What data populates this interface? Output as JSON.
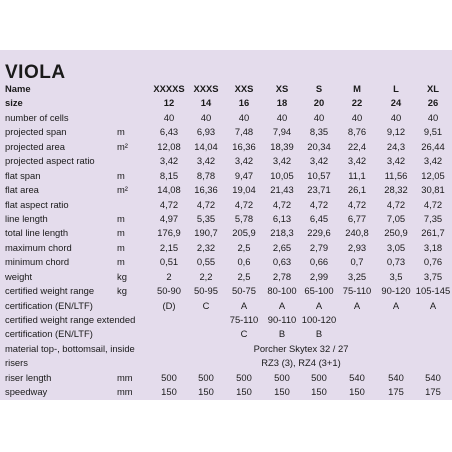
{
  "title": "VIOLA",
  "header": {
    "name_label": "Name",
    "size_label": "size",
    "names": [
      "XXXXS",
      "XXXS",
      "XXS",
      "XS",
      "S",
      "M",
      "L",
      "XL"
    ],
    "sizes": [
      "12",
      "14",
      "16",
      "18",
      "20",
      "22",
      "24",
      "26"
    ]
  },
  "rows": [
    {
      "label": "number of cells",
      "unit": "",
      "values": [
        "40",
        "40",
        "40",
        "40",
        "40",
        "40",
        "40",
        "40"
      ]
    },
    {
      "label": "projected span",
      "unit": "m",
      "values": [
        "6,43",
        "6,93",
        "7,48",
        "7,94",
        "8,35",
        "8,76",
        "9,12",
        "9,51"
      ]
    },
    {
      "label": "projected area",
      "unit": "m²",
      "values": [
        "12,08",
        "14,04",
        "16,36",
        "18,39",
        "20,34",
        "22,4",
        "24,3",
        "26,44"
      ]
    },
    {
      "label": "projected aspect ratio",
      "unit": "",
      "values": [
        "3,42",
        "3,42",
        "3,42",
        "3,42",
        "3,42",
        "3,42",
        "3,42",
        "3,42"
      ]
    },
    {
      "label": "flat span",
      "unit": "m",
      "values": [
        "8,15",
        "8,78",
        "9,47",
        "10,05",
        "10,57",
        "11,1",
        "11,56",
        "12,05"
      ]
    },
    {
      "label": "flat area",
      "unit": "m²",
      "values": [
        "14,08",
        "16,36",
        "19,04",
        "21,43",
        "23,71",
        "26,1",
        "28,32",
        "30,81"
      ]
    },
    {
      "label": "flat aspect ratio",
      "unit": "",
      "values": [
        "4,72",
        "4,72",
        "4,72",
        "4,72",
        "4,72",
        "4,72",
        "4,72",
        "4,72"
      ]
    },
    {
      "label": "line length",
      "unit": "m",
      "values": [
        "4,97",
        "5,35",
        "5,78",
        "6,13",
        "6,45",
        "6,77",
        "7,05",
        "7,35"
      ]
    },
    {
      "label": "total line length",
      "unit": "m",
      "values": [
        "176,9",
        "190,7",
        "205,9",
        "218,3",
        "229,6",
        "240,8",
        "250,9",
        "261,7"
      ]
    },
    {
      "label": "maximum chord",
      "unit": "m",
      "values": [
        "2,15",
        "2,32",
        "2,5",
        "2,65",
        "2,79",
        "2,93",
        "3,05",
        "3,18"
      ]
    },
    {
      "label": "minimum chord",
      "unit": "m",
      "values": [
        "0,51",
        "0,55",
        "0,6",
        "0,63",
        "0,66",
        "0,7",
        "0,73",
        "0,76"
      ]
    },
    {
      "label": "weight",
      "unit": "kg",
      "values": [
        "2",
        "2,2",
        "2,5",
        "2,78",
        "2,99",
        "3,25",
        "3,5",
        "3,75"
      ]
    },
    {
      "label": "certified weight range",
      "unit": "kg",
      "values": [
        "50-90",
        "50-95",
        "50-75",
        "80-100",
        "65-100",
        "75-110",
        "90-120",
        "105-145"
      ]
    },
    {
      "label": "certification (EN/LTF)",
      "unit": "",
      "values": [
        "(D)",
        "C",
        "A",
        "A",
        "A",
        "A",
        "A",
        "A"
      ]
    },
    {
      "label": "certified weight range extended",
      "unit": "",
      "values": [
        "",
        "",
        "75-110",
        "90-110",
        "100-120",
        "",
        "",
        ""
      ]
    },
    {
      "label": "certification (EN/LTF)",
      "unit": "",
      "values": [
        "",
        "",
        "C",
        "B",
        "B",
        "",
        "",
        ""
      ]
    },
    {
      "label": "material top-, bottomsail, inside",
      "unit": "",
      "span": "Porcher Skytex 32 / 27"
    },
    {
      "label": "risers",
      "unit": "",
      "span": "RZ3 (3), RZ4 (3+1)"
    },
    {
      "label": "riser length",
      "unit": "mm",
      "values": [
        "500",
        "500",
        "500",
        "500",
        "500",
        "540",
        "540",
        "540"
      ]
    },
    {
      "label": "speedway",
      "unit": "mm",
      "values": [
        "150",
        "150",
        "150",
        "150",
        "150",
        "150",
        "175",
        "175"
      ]
    }
  ]
}
